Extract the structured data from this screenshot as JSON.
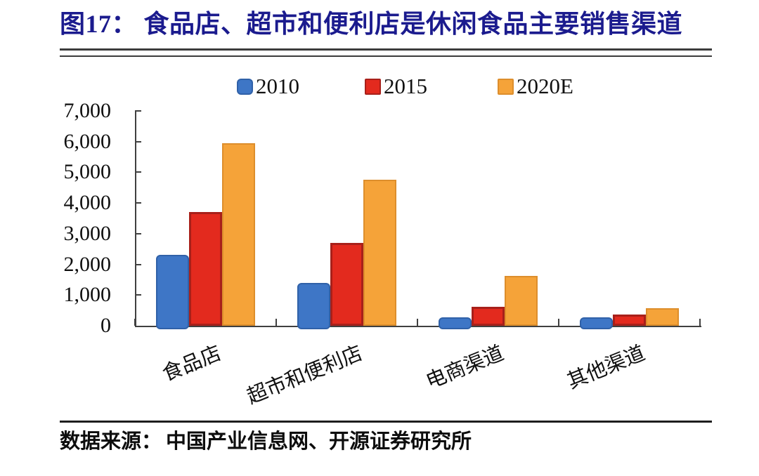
{
  "figure": {
    "title": "图17： 食品店、超市和便利店是休闲食品主要销售渠道",
    "title_color": "#1b1b8e",
    "source_label": "数据来源：",
    "source_text": "中国产业信息网、开源证券研究所"
  },
  "chart_data": {
    "type": "bar",
    "categories": [
      "食品店",
      "超市和便利店",
      "电商渠道",
      "其他渠道"
    ],
    "series": [
      {
        "name": "2010",
        "color": "#3e76c6",
        "border": "#3061a8",
        "values": [
          2300,
          1400,
          280,
          280
        ]
      },
      {
        "name": "2015",
        "color": "#e32a1e",
        "border": "#a8201a",
        "values": [
          3700,
          2700,
          620,
          370
        ]
      },
      {
        "name": "2020E",
        "color": "#f5a339",
        "border": "#dd8e2c",
        "values": [
          5950,
          4750,
          1630,
          580
        ]
      }
    ],
    "ylim": [
      0,
      7000
    ],
    "ytick_step": 1000,
    "ytick_labels": [
      "0",
      "1,000",
      "2,000",
      "3,000",
      "4,000",
      "5,000",
      "6,000",
      "7,000"
    ],
    "legend_position": "top",
    "grid": false,
    "axis_color": "#404040"
  }
}
